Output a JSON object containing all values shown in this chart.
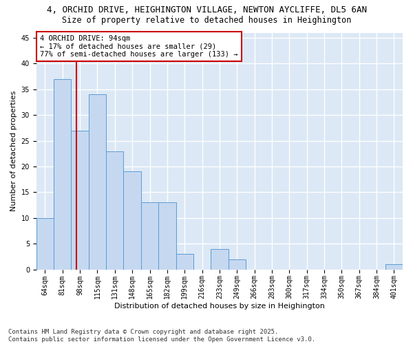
{
  "title1": "4, ORCHID DRIVE, HEIGHINGTON VILLAGE, NEWTON AYCLIFFE, DL5 6AN",
  "title2": "Size of property relative to detached houses in Heighington",
  "xlabel": "Distribution of detached houses by size in Heighington",
  "ylabel": "Number of detached properties",
  "categories": [
    "64sqm",
    "81sqm",
    "98sqm",
    "115sqm",
    "131sqm",
    "148sqm",
    "165sqm",
    "182sqm",
    "199sqm",
    "216sqm",
    "233sqm",
    "249sqm",
    "266sqm",
    "283sqm",
    "300sqm",
    "317sqm",
    "334sqm",
    "350sqm",
    "367sqm",
    "384sqm",
    "401sqm"
  ],
  "values": [
    10,
    37,
    27,
    34,
    23,
    19,
    13,
    13,
    3,
    0,
    4,
    2,
    0,
    0,
    0,
    0,
    0,
    0,
    0,
    0,
    1
  ],
  "bar_color": "#c5d8f0",
  "bar_edge_color": "#5b9bd5",
  "annotation_text1": "4 ORCHID DRIVE: 94sqm",
  "annotation_text2": "← 17% of detached houses are smaller (29)",
  "annotation_text3": "77% of semi-detached houses are larger (133) →",
  "annotation_box_color": "#ffffff",
  "annotation_box_edge": "#cc0000",
  "red_line_color": "#cc0000",
  "red_line_x": 1.8,
  "ylim": [
    0,
    46
  ],
  "yticks": [
    0,
    5,
    10,
    15,
    20,
    25,
    30,
    35,
    40,
    45
  ],
  "background_color": "#dce8f5",
  "grid_color": "#ffffff",
  "footer1": "Contains HM Land Registry data © Crown copyright and database right 2025.",
  "footer2": "Contains public sector information licensed under the Open Government Licence v3.0.",
  "title_fontsize": 9,
  "subtitle_fontsize": 8.5,
  "axis_label_fontsize": 8,
  "tick_fontsize": 7,
  "annotation_fontsize": 7.5,
  "footer_fontsize": 6.5
}
